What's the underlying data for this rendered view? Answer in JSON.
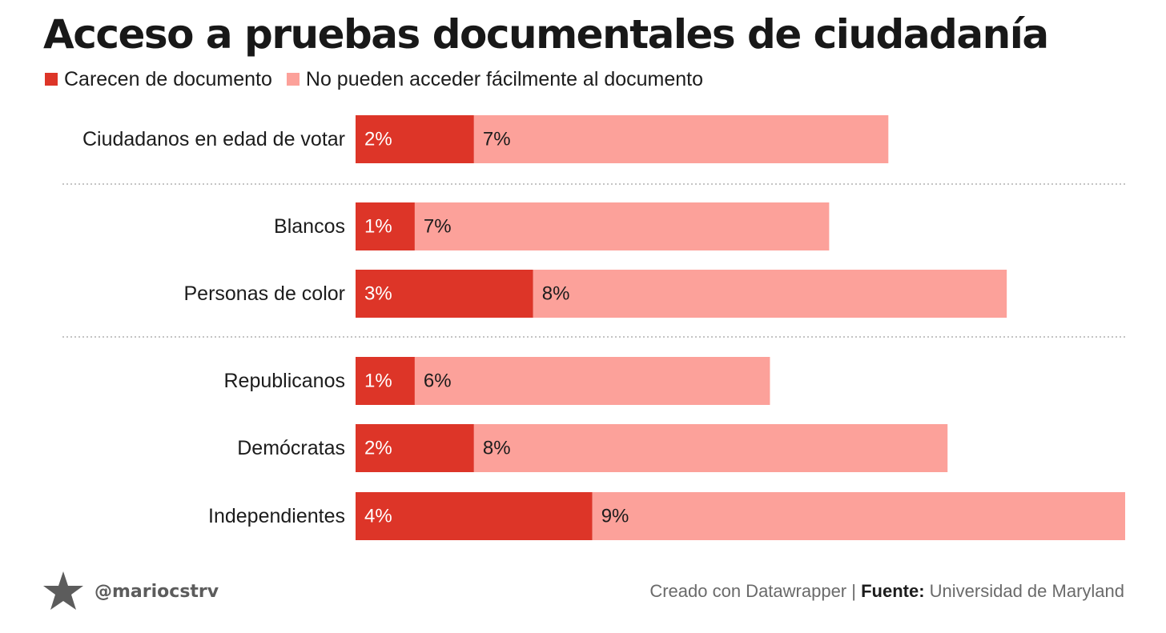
{
  "title": "Acceso a pruebas documentales de ciudadanía",
  "legend": [
    {
      "label": "Carecen de documento",
      "color": "#dd3528"
    },
    {
      "label": "No pueden acceder fácilmente al documento",
      "color": "#fca19a"
    }
  ],
  "chart_data": {
    "type": "bar",
    "orientation": "horizontal",
    "stacked": true,
    "title": "Acceso a pruebas documentales de ciudadanía",
    "categories": [
      "Ciudadanos en edad de votar",
      "Blancos",
      "Personas de color",
      "Republicanos",
      "Demócratas",
      "Independientes"
    ],
    "series": [
      {
        "name": "Carecen de documento",
        "color": "#dd3528",
        "values": [
          2,
          1,
          3,
          1,
          2,
          4
        ],
        "labels": [
          "2%",
          "1%",
          "3%",
          "1%",
          "2%",
          "4%"
        ]
      },
      {
        "name": "No pueden acceder fácilmente al documento",
        "color": "#fca19a",
        "values": [
          7,
          7,
          8,
          6,
          8,
          9
        ],
        "labels": [
          "7%",
          "7%",
          "8%",
          "6%",
          "8%",
          "9%"
        ]
      }
    ],
    "groups": [
      [
        "Ciudadanos en edad de votar"
      ],
      [
        "Blancos",
        "Personas de color"
      ],
      [
        "Republicanos",
        "Demócratas",
        "Independientes"
      ]
    ],
    "xlim": [
      0,
      13
    ]
  },
  "footer": {
    "handle": "@mariocstrv",
    "credit": "Creado con Datawrapper | ",
    "source_label": "Fuente:",
    "source": " Universidad de Maryland"
  }
}
